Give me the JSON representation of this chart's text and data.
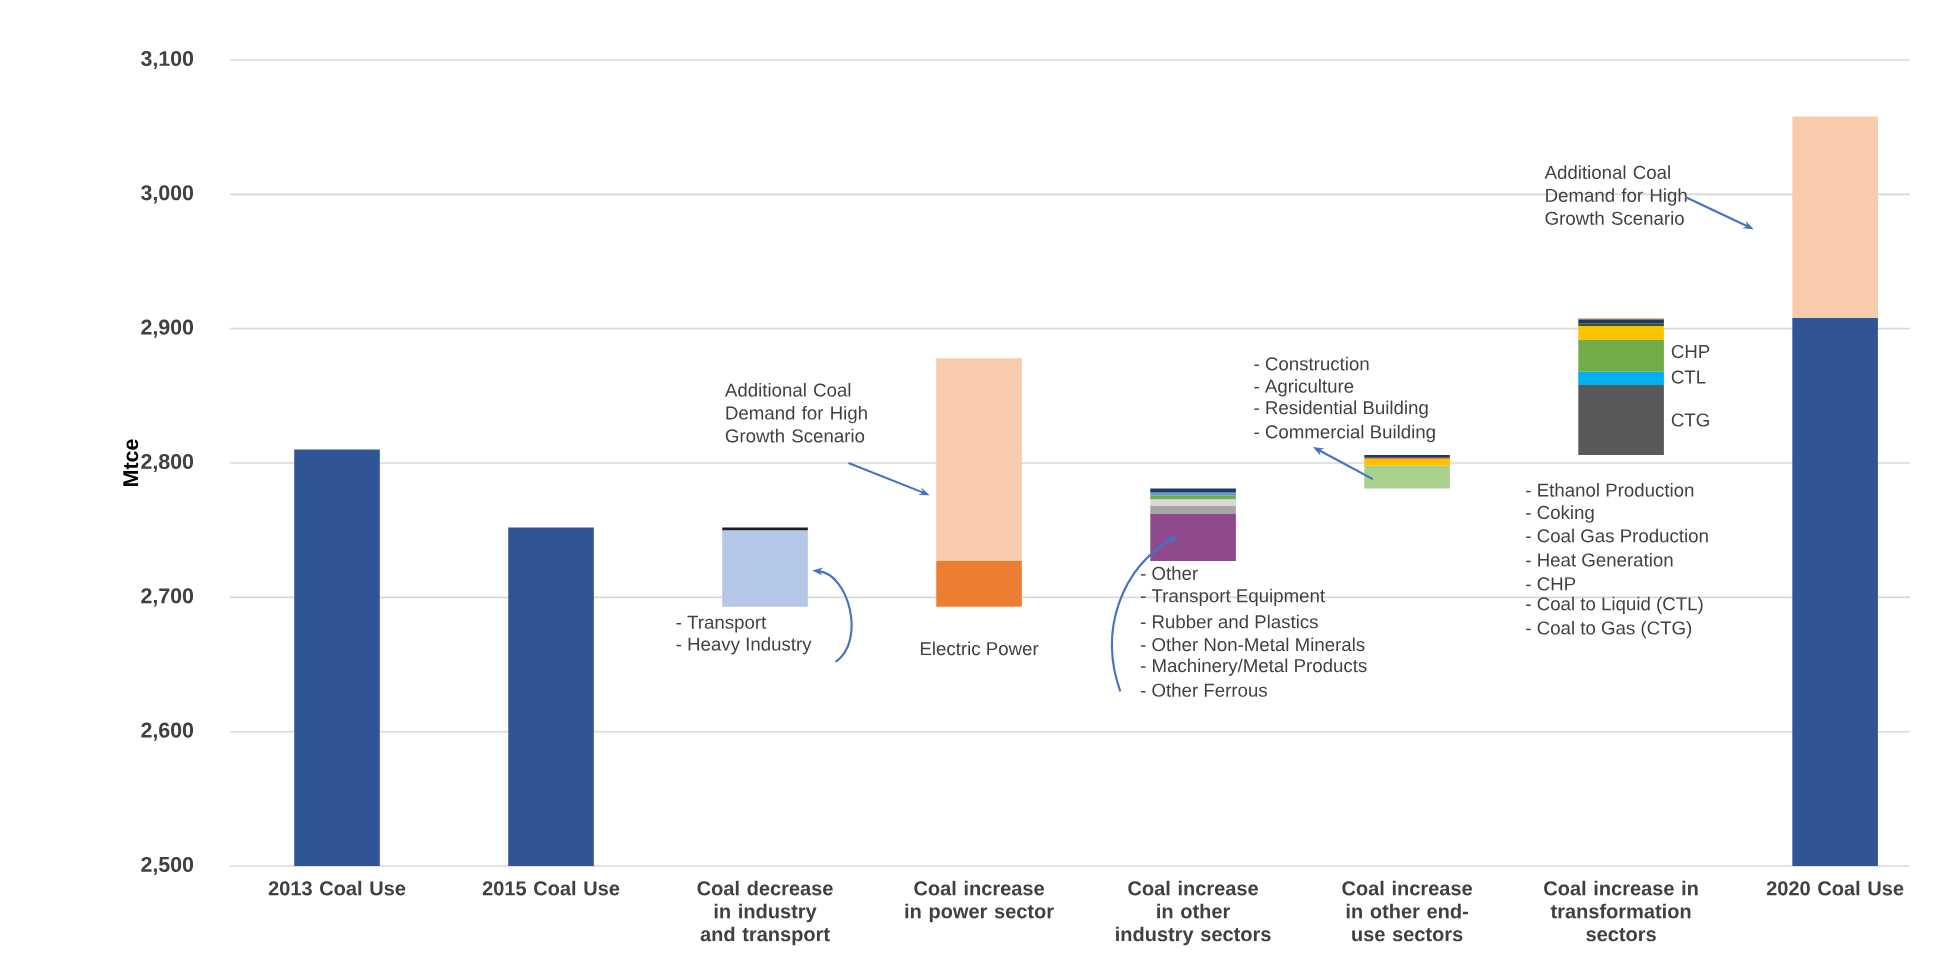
{
  "chart_data": {
    "type": "bar",
    "ylabel": "Mtce",
    "categories": [
      "2013 Coal Use",
      "2015 Coal Use",
      "Coal decrease in industry and transport",
      "Coal increase in power sector",
      "Coal increase in other industry sectors",
      "Coal increase in other end-use sectors",
      "Coal increase in transformation sectors",
      "2020 Coal Use"
    ],
    "series": [
      {
        "colors": [
          "#2f5597",
          "#2f5597",
          "#b4c7e7",
          "#ed7d31",
          "#8e4a8c",
          "#a9d18e",
          "#595959",
          "#2f5597"
        ],
        "base": [
          2500,
          2500,
          2693,
          2693,
          2727,
          2781,
          2806,
          2500
        ],
        "values": [
          310,
          252,
          57,
          34,
          35,
          17,
          52,
          408
        ]
      },
      {
        "colors": [
          "#2f5597",
          "#2f5597",
          "#1f1f1f",
          "#f8cbad",
          "#a6a6a6",
          "#ffc000",
          "#00b0f0",
          "#f8cbad"
        ],
        "base": [
          null,
          null,
          2750,
          2727,
          2762,
          2798,
          2858,
          2908
        ],
        "values": [
          null,
          null,
          2,
          151,
          6,
          5,
          10,
          150
        ]
      },
      {
        "colors": [
          "#2f5597",
          "#2f5597",
          "#1f1f1f",
          "#f8cbad",
          "#d9d9d9",
          "#ed7d31",
          "#70ad47",
          "#f8cbad"
        ],
        "base": [
          null,
          null,
          null,
          null,
          2768,
          2803,
          2868,
          null
        ],
        "values": [
          null,
          null,
          null,
          null,
          5,
          1,
          24,
          null
        ]
      },
      {
        "colors": [
          "#2f5597",
          "#2f5597",
          "#1f1f1f",
          "#f8cbad",
          "#70ad47",
          "#203864",
          "#ffc000",
          "#f8cbad"
        ],
        "base": [
          null,
          null,
          null,
          null,
          2773,
          2804,
          2892,
          null
        ],
        "values": [
          null,
          null,
          null,
          null,
          3,
          2,
          10,
          null
        ]
      },
      {
        "colors": [
          "#2f5597",
          "#2f5597",
          "#1f1f1f",
          "#f8cbad",
          "#5b9bd5",
          "#203864",
          "#375623",
          "#f8cbad"
        ],
        "base": [
          null,
          null,
          null,
          null,
          2776,
          null,
          2902,
          null
        ],
        "values": [
          null,
          null,
          null,
          null,
          2,
          null,
          2,
          null
        ]
      },
      {
        "colors": [
          "#2f5597",
          "#2f5597",
          "#1f1f1f",
          "#f8cbad",
          "#203864",
          "#203864",
          "#1f3864",
          "#f8cbad"
        ],
        "base": [
          null,
          null,
          null,
          null,
          2778,
          null,
          2904,
          null
        ],
        "values": [
          null,
          null,
          null,
          null,
          3,
          null,
          3,
          null
        ]
      },
      {
        "colors": [
          "#2f5597",
          "#2f5597",
          "#1f1f1f",
          "#f8cbad",
          "#203864",
          "#203864",
          "#f4b183",
          "#f8cbad"
        ],
        "base": [
          null,
          null,
          null,
          null,
          null,
          null,
          2907,
          null
        ],
        "values": [
          null,
          null,
          null,
          null,
          null,
          null,
          1,
          null
        ]
      }
    ],
    "ylim": [
      2500,
      3100
    ],
    "yticks": [
      {
        "value": 2500,
        "label": "2,500"
      },
      {
        "value": 2600,
        "label": "2,600"
      },
      {
        "value": 2700,
        "label": "2,700"
      },
      {
        "value": 2800,
        "label": "2,800"
      },
      {
        "value": 2900,
        "label": "2,900"
      },
      {
        "value": 3000,
        "label": "3,000"
      },
      {
        "value": 3100,
        "label": "3,100"
      }
    ],
    "grid": "y",
    "annotations": [
      "Additional Coal Demand for High Growth Scenario",
      "- Transport",
      "- Heavy Industry",
      "Electric Power",
      "- Other",
      "- Transport Equipment",
      "- Rubber and Plastics",
      "- Other Non-Metal Minerals",
      "- Machinery/Metal Products",
      "- Other Ferrous",
      "- Construction",
      "- Agriculture",
      "- Residential Building",
      "- Commercial Building",
      "- Ethanol Production",
      "- Coking",
      "- Coal Gas Production",
      "- Heat Generation",
      "- CHP",
      "- Coal to Liquid (CTL)",
      "- Coal to Gas (CTG)",
      "CHP",
      "CTL",
      "CTG",
      "Additional Coal Demand for High Growth Scenario"
    ]
  }
}
